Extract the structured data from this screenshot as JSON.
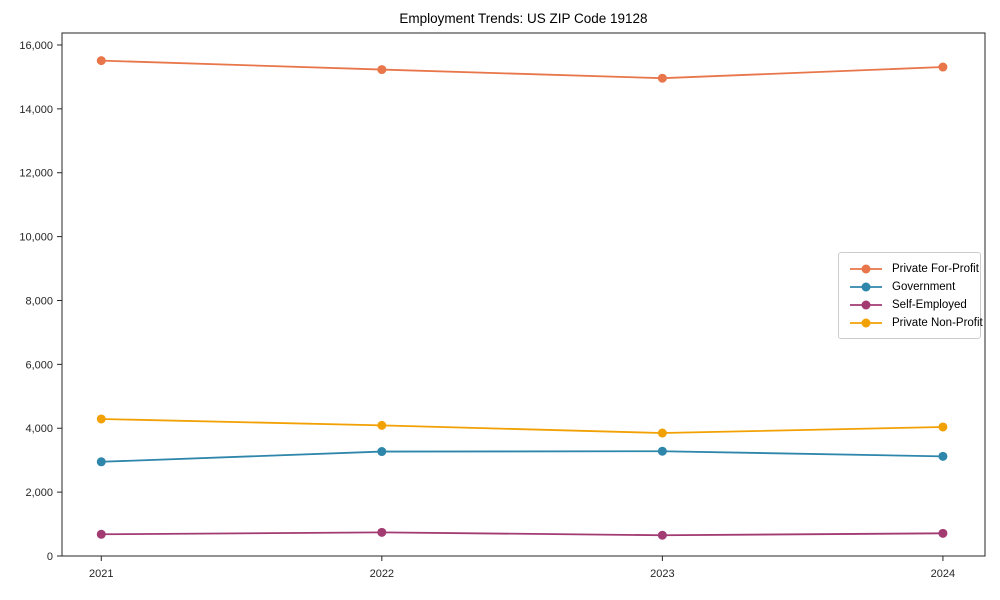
{
  "chart_data": {
    "type": "line",
    "title": "Employment Trends: US ZIP Code 19128",
    "xlabel": "",
    "ylabel": "",
    "x": [
      2021,
      2022,
      2023,
      2024
    ],
    "x_tick_labels": [
      "2021",
      "2022",
      "2023",
      "2024"
    ],
    "series": [
      {
        "name": "Private For-Profit",
        "color": "#E8764A",
        "values": [
          15510,
          15230,
          14960,
          15310
        ]
      },
      {
        "name": "Government",
        "color": "#2E86AB",
        "values": [
          2950,
          3270,
          3280,
          3120
        ]
      },
      {
        "name": "Self-Employed",
        "color": "#A23B72",
        "values": [
          680,
          740,
          650,
          710
        ]
      },
      {
        "name": "Private Non-Profit",
        "color": "#F2A104",
        "values": [
          4290,
          4090,
          3850,
          4040
        ]
      }
    ],
    "yticks": [
      {
        "value": 0,
        "label": "0"
      },
      {
        "value": 2000,
        "label": "2,000"
      },
      {
        "value": 4000,
        "label": "4,000"
      },
      {
        "value": 6000,
        "label": "6,000"
      },
      {
        "value": 8000,
        "label": "8,000"
      },
      {
        "value": 10000,
        "label": "10,000"
      },
      {
        "value": 12000,
        "label": "12,000"
      },
      {
        "value": 14000,
        "label": "14,000"
      },
      {
        "value": 16000,
        "label": "16,000"
      }
    ],
    "xlim": [
      2020.86,
      2024.15
    ],
    "ylim": [
      0,
      16375
    ],
    "grid": false,
    "legend_position": "center right",
    "frame_color": "#262626"
  }
}
